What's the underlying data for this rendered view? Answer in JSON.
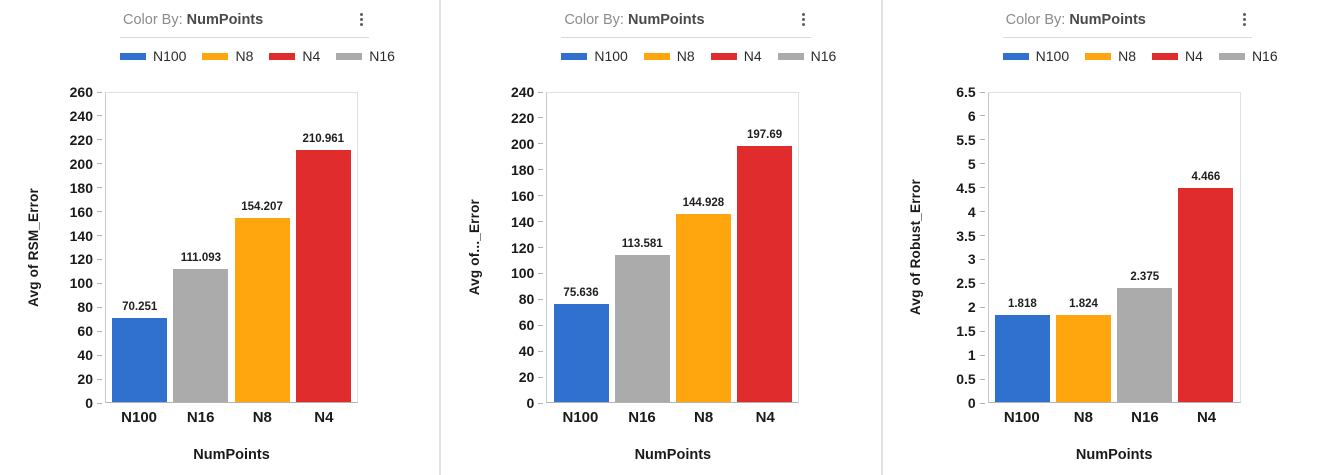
{
  "header": {
    "color_by_label": "Color By:",
    "color_by_value": "NumPoints"
  },
  "legend": {
    "position": "top",
    "items": [
      {
        "label": "N100",
        "color": "#3070CE"
      },
      {
        "label": "N8",
        "color": "#FFA60F"
      },
      {
        "label": "N4",
        "color": "#E02C2C"
      },
      {
        "label": "N16",
        "color": "#ABABAB"
      }
    ]
  },
  "series_colors": {
    "N100": "#3070CE",
    "N8": "#FFA60F",
    "N4": "#E02C2C",
    "N16": "#ABABAB"
  },
  "chart_data": [
    {
      "type": "bar",
      "title": "",
      "ylabel": "Avg of RSM_Error",
      "xlabel": "NumPoints",
      "categories": [
        "N100",
        "N16",
        "N8",
        "N4"
      ],
      "values": [
        70.251,
        111.093,
        154.207,
        210.961
      ],
      "value_labels": [
        "70.251",
        "111.093",
        "154.207",
        "210.961"
      ],
      "bar_colors": [
        "#3070CE",
        "#ABABAB",
        "#FFA60F",
        "#E02C2C"
      ],
      "ylim": [
        0,
        260
      ],
      "ytick_step": 20,
      "grid": false,
      "legend_position": "top"
    },
    {
      "type": "bar",
      "title": "",
      "ylabel": "Avg of..._Error",
      "xlabel": "NumPoints",
      "categories": [
        "N100",
        "N16",
        "N8",
        "N4"
      ],
      "values": [
        75.636,
        113.581,
        144.928,
        197.69
      ],
      "value_labels": [
        "75.636",
        "113.581",
        "144.928",
        "197.69"
      ],
      "bar_colors": [
        "#3070CE",
        "#ABABAB",
        "#FFA60F",
        "#E02C2C"
      ],
      "ylim": [
        0,
        240
      ],
      "ytick_step": 20,
      "grid": false,
      "legend_position": "top"
    },
    {
      "type": "bar",
      "title": "",
      "ylabel": "Avg of Robust_Error",
      "xlabel": "NumPoints",
      "categories": [
        "N100",
        "N8",
        "N16",
        "N4"
      ],
      "values": [
        1.818,
        1.824,
        2.375,
        4.466
      ],
      "value_labels": [
        "1.818",
        "1.824",
        "2.375",
        "4.466"
      ],
      "bar_colors": [
        "#3070CE",
        "#FFA60F",
        "#ABABAB",
        "#E02C2C"
      ],
      "ylim": [
        0,
        6.5
      ],
      "ytick_step": 0.5,
      "grid": false,
      "legend_position": "top"
    }
  ]
}
